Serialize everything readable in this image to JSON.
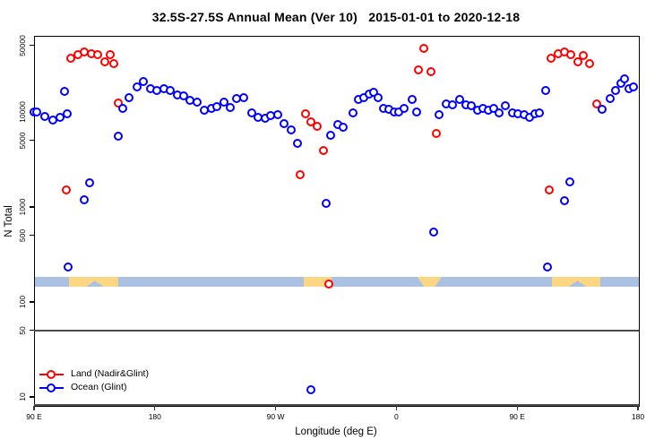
{
  "title": "32.5S-27.5S Annual Mean (Ver 10)   2015-01-01 to 2020-12-18",
  "chart_data": {
    "type": "scatter",
    "title": "32.5S-27.5S Annual Mean (Ver 10)   2015-01-01 to 2020-12-18",
    "xlabel": "Longitude (deg E)",
    "ylabel": "N Total",
    "x_axis": {
      "tick_values": [
        90,
        180,
        270,
        360,
        450,
        540
      ],
      "tick_labels": [
        "90 E",
        "180",
        "90 W",
        "0",
        "90 E",
        "180"
      ],
      "range": [
        90,
        540
      ],
      "grid": false
    },
    "y_axis": {
      "scale": "log",
      "tick_values": [
        50000,
        10000,
        5000,
        1000,
        500,
        100,
        50,
        10
      ],
      "tick_labels": [
        "50000",
        "10000",
        "5000",
        "1000",
        "500",
        "100",
        "50",
        "10"
      ],
      "range": [
        8,
        63000
      ],
      "grid": false
    },
    "reference_line_value": 50,
    "land_ocean_strip": {
      "ocean_color": "#abc1e2",
      "land_color": "#fcd783",
      "land_segments": [
        {
          "from_deg": 115.2,
          "to_deg": 152.0,
          "shape": "notch"
        },
        {
          "from_deg": 290.0,
          "to_deg": 311.0,
          "shape": "plain"
        },
        {
          "from_deg": 375.0,
          "to_deg": 393.0,
          "shape": "taper"
        },
        {
          "from_deg": 475.0,
          "to_deg": 511.5,
          "shape": "notch"
        }
      ]
    },
    "legend": {
      "position": "bottom-left",
      "entries": [
        {
          "label": "Land (Nadir&Glint)",
          "color": "#ff0000"
        },
        {
          "label": "Ocean (Glint)",
          "color": "#0000ff"
        }
      ]
    },
    "series": [
      {
        "name": "Land (Nadir&Glint)",
        "color": "#ff0000",
        "marker": "open-circle",
        "points": [
          [
            114,
            1500
          ],
          [
            117.5,
            37000
          ],
          [
            122.5,
            40500
          ],
          [
            127.5,
            43000
          ],
          [
            132.5,
            41000
          ],
          [
            137.5,
            40000
          ],
          [
            142.5,
            33500
          ],
          [
            147,
            39800
          ],
          [
            149.5,
            32500
          ],
          [
            152.5,
            12300
          ],
          [
            288,
            2200
          ],
          [
            292,
            9500
          ],
          [
            296.5,
            7800
          ],
          [
            301,
            7000
          ],
          [
            305.5,
            3900
          ],
          [
            309.5,
            155
          ],
          [
            376.5,
            28000
          ],
          [
            380.5,
            47000
          ],
          [
            385.5,
            26500
          ],
          [
            390,
            6000
          ],
          [
            474,
            1500
          ],
          [
            475.5,
            37000
          ],
          [
            480.5,
            41000
          ],
          [
            485.5,
            42500
          ],
          [
            490,
            40500
          ],
          [
            495,
            33500
          ],
          [
            499,
            39000
          ],
          [
            504,
            32500
          ],
          [
            509.5,
            12200
          ]
        ]
      },
      {
        "name": "Ocean (Glint)",
        "color": "#0000ff",
        "marker": "open-circle",
        "points": [
          [
            90.3,
            9900
          ],
          [
            92,
            10000
          ],
          [
            98,
            8900
          ],
          [
            104,
            8300
          ],
          [
            109.5,
            8700
          ],
          [
            113,
            16500
          ],
          [
            115,
            9600
          ],
          [
            115.4,
            233
          ],
          [
            127.5,
            1190
          ],
          [
            131.5,
            1800
          ],
          [
            152.5,
            5600
          ],
          [
            156,
            10800
          ],
          [
            161,
            14300
          ],
          [
            166.5,
            18500
          ],
          [
            171.5,
            21000
          ],
          [
            176.5,
            17500
          ],
          [
            181.5,
            17000
          ],
          [
            186.5,
            17500
          ],
          [
            191.5,
            17000
          ],
          [
            196.5,
            15200
          ],
          [
            201.5,
            14800
          ],
          [
            206,
            13400
          ],
          [
            211.5,
            12600
          ],
          [
            217,
            10500
          ],
          [
            222,
            10800
          ],
          [
            226.5,
            11300
          ],
          [
            231.5,
            12700
          ],
          [
            236.5,
            11200
          ],
          [
            241,
            13900
          ],
          [
            246,
            14200
          ],
          [
            252,
            9700
          ],
          [
            257,
            8800
          ],
          [
            262,
            8600
          ],
          [
            266.5,
            9100
          ],
          [
            271.5,
            9300
          ],
          [
            276.5,
            7500
          ],
          [
            281.5,
            6500
          ],
          [
            286.5,
            4700
          ],
          [
            296.5,
            12
          ],
          [
            307.5,
            1100
          ],
          [
            311,
            5700
          ],
          [
            316.5,
            7400
          ],
          [
            320.5,
            6900
          ],
          [
            327.5,
            9800
          ],
          [
            331.5,
            13500
          ],
          [
            335.5,
            14200
          ],
          [
            340,
            15400
          ],
          [
            343,
            16000
          ],
          [
            346.5,
            14200
          ],
          [
            350.5,
            11000
          ],
          [
            354.5,
            10700
          ],
          [
            358.5,
            10100
          ],
          [
            362,
            10000
          ],
          [
            365.5,
            10900
          ],
          [
            371.5,
            13700
          ],
          [
            375,
            10000
          ],
          [
            388,
            540
          ],
          [
            391.5,
            9300
          ],
          [
            397,
            12200
          ],
          [
            401.5,
            11800
          ],
          [
            407,
            13500
          ],
          [
            411.5,
            11900
          ],
          [
            416,
            11700
          ],
          [
            420.5,
            10500
          ],
          [
            424.5,
            10900
          ],
          [
            428.5,
            10500
          ],
          [
            432.5,
            11000
          ],
          [
            436.5,
            9800
          ],
          [
            441.5,
            11700
          ],
          [
            446.5,
            9800
          ],
          [
            450.5,
            9650
          ],
          [
            455.5,
            9300
          ],
          [
            459.5,
            8800
          ],
          [
            463.5,
            9500
          ],
          [
            466.5,
            9800
          ],
          [
            471.5,
            17000
          ],
          [
            472.5,
            235
          ],
          [
            485.5,
            1170
          ],
          [
            489.5,
            1830
          ],
          [
            513.5,
            10750
          ],
          [
            519.5,
            13900
          ],
          [
            523,
            17000
          ],
          [
            527,
            19900
          ],
          [
            530,
            22100
          ],
          [
            533.5,
            17500
          ],
          [
            536.5,
            18200
          ]
        ]
      }
    ]
  }
}
